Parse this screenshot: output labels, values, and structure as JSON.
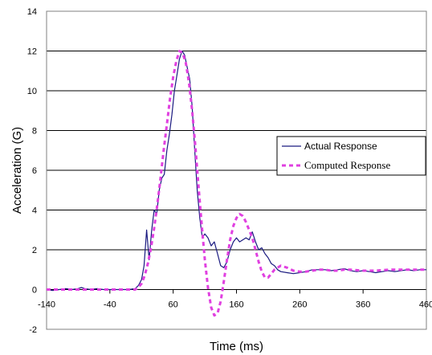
{
  "chart_data": {
    "type": "line",
    "title": "",
    "xlabel": "Time (ms)",
    "ylabel": "Acceleration (G)",
    "xlim": [
      -140,
      460
    ],
    "ylim": [
      -2,
      14
    ],
    "x_ticks": [
      -140,
      -40,
      60,
      160,
      260,
      360,
      460
    ],
    "y_ticks": [
      -2,
      0,
      2,
      4,
      6,
      8,
      10,
      12,
      14
    ],
    "grid": "horizontal major gridlines",
    "legend_position": "right",
    "series": [
      {
        "name": "Actual Response",
        "color": "#1a1a80",
        "style": "solid",
        "x": [
          -140,
          -130,
          -120,
          -110,
          -100,
          -90,
          -85,
          -80,
          -70,
          -60,
          -50,
          -40,
          -30,
          -20,
          -10,
          0,
          5,
          10,
          14,
          18,
          22,
          26,
          30,
          34,
          38,
          42,
          46,
          50,
          54,
          58,
          62,
          66,
          70,
          74,
          78,
          82,
          86,
          90,
          94,
          98,
          102,
          106,
          110,
          115,
          120,
          125,
          130,
          135,
          140,
          145,
          150,
          155,
          160,
          165,
          170,
          175,
          180,
          185,
          190,
          195,
          200,
          205,
          210,
          215,
          220,
          225,
          230,
          240,
          250,
          260,
          270,
          280,
          290,
          300,
          310,
          320,
          330,
          340,
          350,
          360,
          370,
          380,
          390,
          400,
          410,
          420,
          430,
          440,
          450,
          460
        ],
        "values": [
          0.0,
          -0.05,
          0.0,
          0.05,
          0.0,
          0.05,
          0.1,
          0.05,
          0.0,
          0.05,
          0.0,
          0.0,
          0.0,
          0.0,
          0.0,
          0.05,
          0.2,
          0.5,
          1.2,
          3.0,
          1.5,
          3.0,
          4.0,
          3.8,
          5.0,
          5.6,
          5.8,
          7.0,
          7.8,
          8.8,
          10.0,
          10.8,
          11.6,
          12.0,
          11.8,
          11.2,
          10.6,
          9.2,
          7.0,
          5.0,
          3.6,
          2.6,
          2.8,
          2.6,
          2.2,
          2.4,
          1.8,
          1.2,
          1.1,
          1.4,
          2.0,
          2.4,
          2.6,
          2.4,
          2.5,
          2.6,
          2.5,
          2.9,
          2.4,
          2.0,
          2.1,
          1.8,
          1.6,
          1.3,
          1.2,
          1.0,
          0.9,
          0.85,
          0.8,
          0.85,
          0.9,
          1.0,
          1.0,
          1.0,
          0.95,
          1.0,
          1.05,
          0.95,
          0.9,
          0.95,
          0.9,
          0.85,
          0.9,
          0.95,
          0.9,
          0.95,
          1.0,
          0.95,
          1.0,
          1.0
        ]
      },
      {
        "name": "Computed Response",
        "color": "#e040e0",
        "style": "dashed",
        "x": [
          -140,
          -120,
          -100,
          -80,
          -60,
          -40,
          -20,
          -10,
          0,
          5,
          10,
          15,
          20,
          25,
          30,
          35,
          40,
          45,
          50,
          55,
          60,
          65,
          70,
          75,
          80,
          85,
          90,
          95,
          100,
          105,
          110,
          115,
          120,
          125,
          130,
          135,
          140,
          145,
          150,
          155,
          160,
          165,
          170,
          175,
          180,
          185,
          190,
          195,
          200,
          205,
          210,
          215,
          220,
          225,
          230,
          240,
          250,
          260,
          270,
          280,
          290,
          300,
          310,
          320,
          330,
          340,
          360,
          380,
          400,
          420,
          440,
          460
        ],
        "values": [
          0.0,
          0.0,
          0.0,
          0.0,
          0.0,
          0.0,
          0.0,
          0.0,
          0.0,
          0.1,
          0.3,
          0.7,
          1.3,
          2.1,
          3.1,
          4.3,
          5.6,
          7.0,
          8.3,
          9.6,
          10.7,
          11.5,
          12.0,
          11.9,
          11.4,
          10.4,
          9.0,
          7.2,
          5.2,
          3.3,
          1.5,
          0.1,
          -0.9,
          -1.3,
          -1.2,
          -0.6,
          0.4,
          1.5,
          2.5,
          3.2,
          3.6,
          3.8,
          3.7,
          3.4,
          3.0,
          2.6,
          2.0,
          1.4,
          0.9,
          0.6,
          0.6,
          0.8,
          1.0,
          1.1,
          1.2,
          1.1,
          0.95,
          0.9,
          0.9,
          0.95,
          1.0,
          1.0,
          0.95,
          0.95,
          1.0,
          1.0,
          0.95,
          0.95,
          1.0,
          1.0,
          1.0,
          1.0
        ]
      }
    ]
  }
}
